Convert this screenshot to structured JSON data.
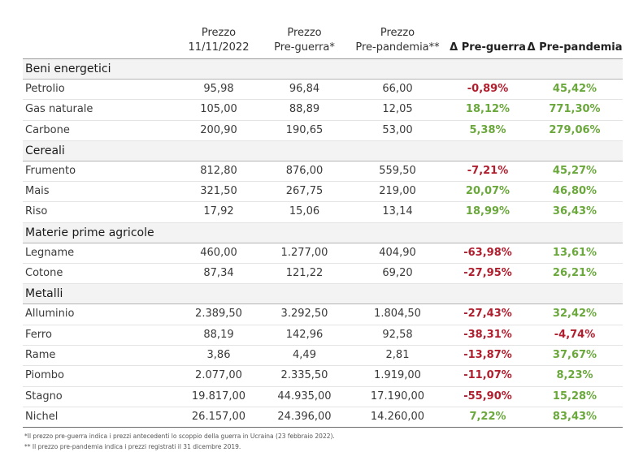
{
  "header": {
    "col1": [
      "Prezzo",
      "11/11/2022"
    ],
    "col2": [
      "Prezzo",
      "Pre-guerra*"
    ],
    "col3": [
      "Prezzo",
      "Pre-pandemia**"
    ],
    "col4": "Δ Pre-guerra",
    "col5": "Δ Pre-pandemia"
  },
  "sections": [
    {
      "category": "Beni energetici",
      "rows": [
        {
          "name": "Petrolio",
          "price": "95,98",
          "pre_war": "96,84",
          "pre_pandemic": "66,00",
          "d_war": "-0,89%",
          "d_pandemic": "45,42%"
        },
        {
          "name": "Gas naturale",
          "price": "105,00",
          "pre_war": "88,89",
          "pre_pandemic": "12,05",
          "d_war": "18,12%",
          "d_pandemic": "771,30%"
        },
        {
          "name": "Carbone",
          "price": "200,90",
          "pre_war": "190,65",
          "pre_pandemic": "53,00",
          "d_war": "5,38%",
          "d_pandemic": "279,06%"
        }
      ]
    },
    {
      "category": "Cereali",
      "rows": [
        {
          "name": "Frumento",
          "price": "812,80",
          "pre_war": "876,00",
          "pre_pandemic": "559,50",
          "d_war": "-7,21%",
          "d_pandemic": "45,27%"
        },
        {
          "name": "Mais",
          "price": "321,50",
          "pre_war": "267,75",
          "pre_pandemic": "219,00",
          "d_war": "20,07%",
          "d_pandemic": "46,80%"
        },
        {
          "name": "Riso",
          "price": "17,92",
          "pre_war": "15,06",
          "pre_pandemic": "13,14",
          "d_war": "18,99%",
          "d_pandemic": "36,43%"
        }
      ]
    },
    {
      "category": "Materie prime agricole",
      "rows": [
        {
          "name": "Legname",
          "price": "460,00",
          "pre_war": "1.277,00",
          "pre_pandemic": "404,90",
          "d_war": "-63,98%",
          "d_pandemic": "13,61%"
        },
        {
          "name": "Cotone",
          "price": "87,34",
          "pre_war": "121,22",
          "pre_pandemic": "69,20",
          "d_war": "-27,95%",
          "d_pandemic": "26,21%"
        }
      ]
    },
    {
      "category": "Metalli",
      "rows": [
        {
          "name": "Alluminio",
          "price": "2.389,50",
          "pre_war": "3.292,50",
          "pre_pandemic": "1.804,50",
          "d_war": "-27,43%",
          "d_pandemic": "32,42%"
        },
        {
          "name": "Ferro",
          "price": "88,19",
          "pre_war": "142,96",
          "pre_pandemic": "92,58",
          "d_war": "-38,31%",
          "d_pandemic": "-4,74%"
        },
        {
          "name": "Rame",
          "price": "3,86",
          "pre_war": "4,49",
          "pre_pandemic": "2,81",
          "d_war": "-13,87%",
          "d_pandemic": "37,67%"
        },
        {
          "name": "Piombo",
          "price": "2.077,00",
          "pre_war": "2.335,50",
          "pre_pandemic": "1.919,00",
          "d_war": "-11,07%",
          "d_pandemic": "8,23%"
        },
        {
          "name": "Stagno",
          "price": "19.817,00",
          "pre_war": "44.935,00",
          "pre_pandemic": "17.190,00",
          "d_war": "-55,90%",
          "d_pandemic": "15,28%"
        },
        {
          "name": "Nichel",
          "price": "26.157,00",
          "pre_war": "24.396,00",
          "pre_pandemic": "14.260,00",
          "d_war": "7,22%",
          "d_pandemic": "83,43%"
        }
      ]
    }
  ],
  "notes": [
    "*Il prezzo pre-guerra indica i prezzi antecedenti lo scoppio della guerra in Ucraina (23 febbraio 2022).",
    "** Il prezzo pre-pandemia indica i prezzi registrati il 31 dicembre 2019."
  ],
  "colors": {
    "negative": "#b01e2e",
    "positive": "#6aa83c",
    "category_bg": "#f3f3f3"
  }
}
